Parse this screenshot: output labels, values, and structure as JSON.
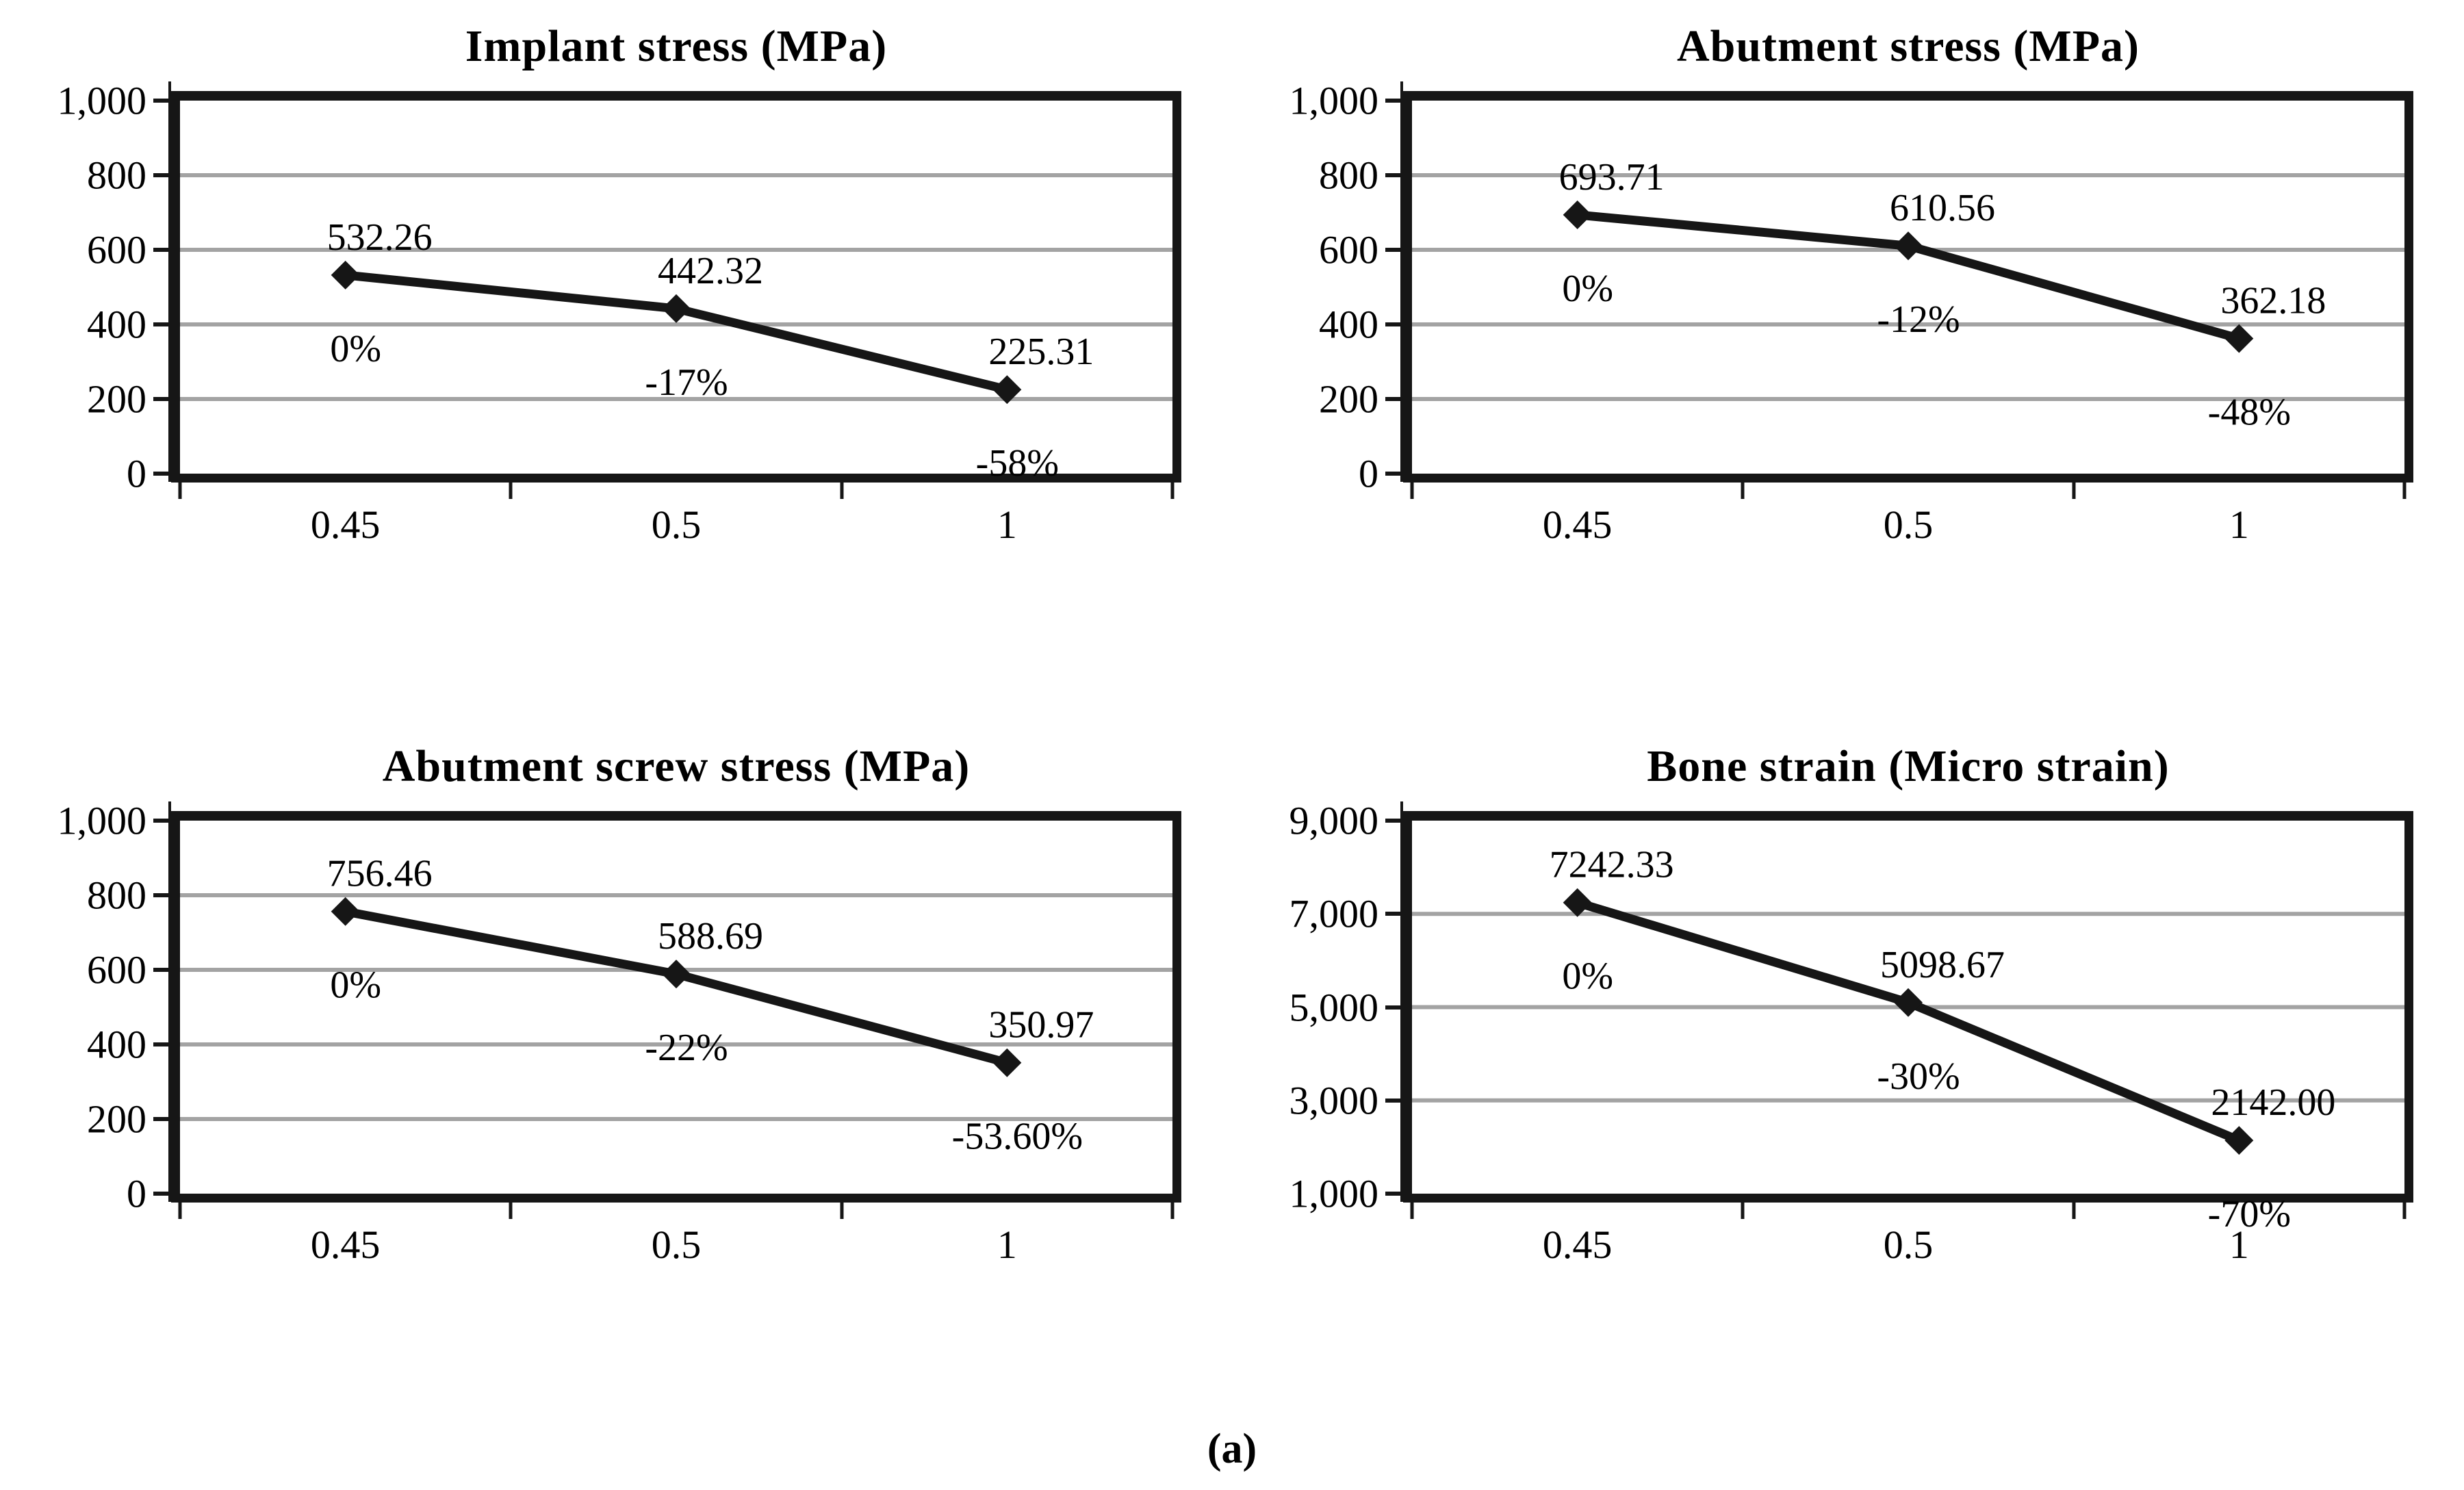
{
  "caption": "(a)",
  "colors": {
    "text": "#000000",
    "grid": "#a3a3a3",
    "series": "#161616",
    "border": "#161616",
    "background": "#ffffff"
  },
  "chart_data": [
    {
      "type": "line",
      "title": "Implant stress (MPa)",
      "xlabel": "",
      "ylabel": "",
      "categories": [
        "0.45",
        "0.5",
        "1"
      ],
      "values": [
        532.26,
        442.32,
        225.31
      ],
      "value_labels": [
        "532.26",
        "442.32",
        "225.31"
      ],
      "pct_labels": [
        "0%",
        "-17%",
        "-58%"
      ],
      "ylim": [
        0,
        1000
      ],
      "yticks": [
        {
          "value": 0,
          "label": "0"
        },
        {
          "value": 200,
          "label": "200"
        },
        {
          "value": 400,
          "label": "400"
        },
        {
          "value": 600,
          "label": "600"
        },
        {
          "value": 800,
          "label": "800"
        },
        {
          "value": 1000,
          "label": "1,000"
        }
      ],
      "grid": true,
      "legend": false,
      "marker": "diamond"
    },
    {
      "type": "line",
      "title": "Abutment stress (MPa)",
      "xlabel": "",
      "ylabel": "",
      "categories": [
        "0.45",
        "0.5",
        "1"
      ],
      "values": [
        693.71,
        610.56,
        362.18
      ],
      "value_labels": [
        "693.71",
        "610.56",
        "362.18"
      ],
      "pct_labels": [
        "0%",
        "-12%",
        "-48%"
      ],
      "ylim": [
        0,
        1000
      ],
      "yticks": [
        {
          "value": 0,
          "label": "0"
        },
        {
          "value": 200,
          "label": "200"
        },
        {
          "value": 400,
          "label": "400"
        },
        {
          "value": 600,
          "label": "600"
        },
        {
          "value": 800,
          "label": "800"
        },
        {
          "value": 1000,
          "label": "1,000"
        }
      ],
      "grid": true,
      "legend": false,
      "marker": "diamond"
    },
    {
      "type": "line",
      "title": "Abutment screw stress (MPa)",
      "xlabel": "",
      "ylabel": "",
      "categories": [
        "0.45",
        "0.5",
        "1"
      ],
      "values": [
        756.46,
        588.69,
        350.97
      ],
      "value_labels": [
        "756.46",
        "588.69",
        "350.97"
      ],
      "pct_labels": [
        "0%",
        "-22%",
        "-53.60%"
      ],
      "ylim": [
        0,
        1000
      ],
      "yticks": [
        {
          "value": 0,
          "label": "0"
        },
        {
          "value": 200,
          "label": "200"
        },
        {
          "value": 400,
          "label": "400"
        },
        {
          "value": 600,
          "label": "600"
        },
        {
          "value": 800,
          "label": "800"
        },
        {
          "value": 1000,
          "label": "1,000"
        }
      ],
      "grid": true,
      "legend": false,
      "marker": "diamond"
    },
    {
      "type": "line",
      "title": "Bone strain (Micro strain)",
      "xlabel": "",
      "ylabel": "",
      "categories": [
        "0.45",
        "0.5",
        "1"
      ],
      "values": [
        7242.33,
        5098.67,
        2142.0
      ],
      "value_labels": [
        "7242.33",
        "5098.67",
        "2142.00"
      ],
      "pct_labels": [
        "0%",
        "-30%",
        "-70%"
      ],
      "ylim": [
        1000,
        9000
      ],
      "yticks": [
        {
          "value": 1000,
          "label": "1,000"
        },
        {
          "value": 3000,
          "label": "3,000"
        },
        {
          "value": 5000,
          "label": "5,000"
        },
        {
          "value": 7000,
          "label": "7,000"
        },
        {
          "value": 9000,
          "label": "9,000"
        }
      ],
      "grid": true,
      "legend": false,
      "marker": "diamond"
    }
  ]
}
